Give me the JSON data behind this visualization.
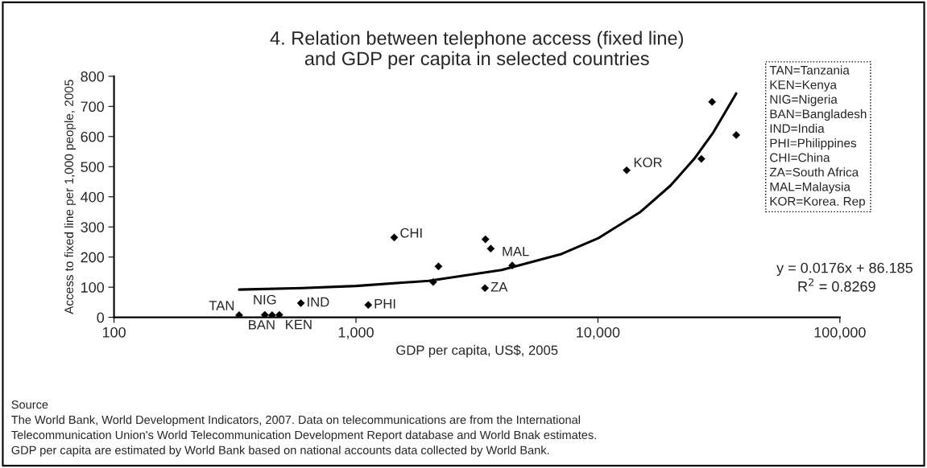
{
  "chart_data": {
    "type": "scatter",
    "title": "4. Relation between telephone access (fixed line)\nand GDP per capita in selected countries",
    "xlabel": "GDP per capita, US$, 2005",
    "ylabel": "Access to fixed line per 1,000 people, 2005",
    "log": "x",
    "xlim": [
      100,
      100000
    ],
    "xticks": [
      {
        "value": 100,
        "label": "100"
      },
      {
        "value": 1000,
        "label": "1,000"
      },
      {
        "value": 10000,
        "label": "10,000"
      },
      {
        "value": 100000,
        "label": "100,000"
      }
    ],
    "ylim": [
      0,
      800
    ],
    "yticks": [
      0,
      100,
      200,
      300,
      400,
      500,
      600,
      700,
      800
    ],
    "grid": false,
    "legend": false,
    "marker": "diamond",
    "series": [
      {
        "type": "scatter",
        "color": "#000000",
        "x": [
          329,
          420,
          450,
          482,
          592,
          1124,
          1439,
          2085,
          2193,
          3428,
          3606,
          3413,
          4424,
          13150,
          26760,
          29650,
          37300
        ],
        "values": [
          7,
          8,
          7,
          8,
          47,
          41,
          265,
          117,
          169,
          259,
          228,
          97,
          172,
          488,
          526,
          715,
          605
        ]
      },
      {
        "type": "line",
        "color": "#000000",
        "marker": "none",
        "x": [
          329,
          600,
          1000,
          2000,
          4000,
          7000,
          10000,
          15000,
          20000,
          25000,
          30000,
          37300
        ],
        "values": [
          92,
          97,
          104,
          121,
          157,
          209,
          262,
          350,
          438,
          526,
          614,
          743
        ]
      }
    ],
    "annotations": [
      {
        "text": "TAN",
        "x": 329,
        "y": 7
      },
      {
        "text": "NIG",
        "x": 420,
        "y": 8
      },
      {
        "text": "BAN",
        "x": 450,
        "y": 7
      },
      {
        "text": "KEN",
        "x": 482,
        "y": 8
      },
      {
        "text": "IND",
        "x": 592,
        "y": 47
      },
      {
        "text": "PHI",
        "x": 1124,
        "y": 41
      },
      {
        "text": "CHI",
        "x": 1439,
        "y": 265
      },
      {
        "text": "ZA",
        "x": 3413,
        "y": 97
      },
      {
        "text": "MAL",
        "x": 4424,
        "y": 172
      },
      {
        "text": "KOR",
        "x": 13150,
        "y": 488
      },
      "TAN=Tanzania\nKEN=Kenya\nNIG=Nigeria\nBAN=Bangladesh\nIND=India\nPHI=Philippines\nCHI=China\nZA=South Africa\nMAL=Malaysia\nKOR=Korea. Rep",
      "y = 0.0176x + 86.185",
      "R$^{2}$ = 0.8269",
      "Source\nThe World Bank, World Development Indicators, 2007. Data on telecommunications are from the International\nTelecommunication Union's World Telecommunication Development Report database and World Bnak estimates.\nGDP per capita are estimated by World Bank based on national accounts data collected by World Bank."
    ]
  }
}
